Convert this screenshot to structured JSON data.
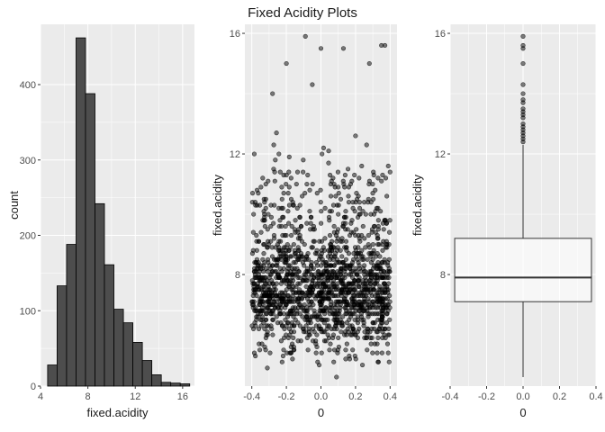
{
  "title": "Fixed Acidity Plots",
  "colors": {
    "panel_bg": "#ebebeb",
    "grid": "#ffffff",
    "bar_fill": "#4d4d4d",
    "bar_stroke": "#000000",
    "point": "#000000",
    "box_fill": "#ffffff"
  },
  "chart_data": [
    {
      "type": "bar",
      "subtype": "histogram",
      "xlabel": "fixed.acidity",
      "ylabel": "count",
      "xlim": [
        4.0,
        17.0
      ],
      "ylim": [
        0,
        480
      ],
      "x_ticks": [
        4,
        8,
        12,
        16
      ],
      "y_ticks": [
        0,
        100,
        200,
        300,
        400
      ],
      "bin_width": 0.8,
      "bins": [
        {
          "x0": 4.6,
          "x1": 5.4,
          "count": 28
        },
        {
          "x0": 5.4,
          "x1": 6.2,
          "count": 133
        },
        {
          "x0": 6.2,
          "x1": 7.0,
          "count": 188
        },
        {
          "x0": 7.0,
          "x1": 7.8,
          "count": 462
        },
        {
          "x0": 7.8,
          "x1": 8.6,
          "count": 388
        },
        {
          "x0": 8.6,
          "x1": 9.4,
          "count": 242
        },
        {
          "x0": 9.4,
          "x1": 10.2,
          "count": 161
        },
        {
          "x0": 10.2,
          "x1": 11.0,
          "count": 102
        },
        {
          "x0": 11.0,
          "x1": 11.8,
          "count": 84
        },
        {
          "x0": 11.8,
          "x1": 12.6,
          "count": 58
        },
        {
          "x0": 12.6,
          "x1": 13.4,
          "count": 34
        },
        {
          "x0": 13.4,
          "x1": 14.2,
          "count": 15
        },
        {
          "x0": 14.2,
          "x1": 15.0,
          "count": 5
        },
        {
          "x0": 15.0,
          "x1": 15.8,
          "count": 4
        },
        {
          "x0": 15.8,
          "x1": 16.6,
          "count": 3
        }
      ]
    },
    {
      "type": "scatter",
      "subtype": "jitter",
      "xlabel": "0",
      "ylabel": "fixed.acidity",
      "xlim": [
        -0.44,
        0.44
      ],
      "ylim": [
        4.3,
        16.3
      ],
      "x_ticks": [
        -0.4,
        -0.2,
        0.0,
        0.2,
        0.4
      ],
      "x_tick_labels": [
        "-0.4",
        "-0.2",
        "0.0",
        "0.2",
        "0.4"
      ],
      "y_ticks": [
        8,
        12,
        16
      ],
      "point_count": 1599,
      "outliers": [
        {
          "x": -0.09,
          "y": 15.9
        },
        {
          "x": 0.0,
          "y": 15.5
        },
        {
          "x": 0.35,
          "y": 15.6
        },
        {
          "x": 0.37,
          "y": 15.6
        },
        {
          "x": 0.13,
          "y": 15.5
        },
        {
          "x": -0.2,
          "y": 15.0
        },
        {
          "x": 0.28,
          "y": 15.0
        },
        {
          "x": -0.05,
          "y": 14.3
        },
        {
          "x": -0.28,
          "y": 14.0
        },
        {
          "x": 0.09,
          "y": 4.6
        },
        {
          "x": -0.31,
          "y": 4.9
        },
        {
          "x": 0.24,
          "y": 5.0
        },
        {
          "x": -0.01,
          "y": 5.0
        },
        {
          "x": 0.33,
          "y": 5.1
        }
      ]
    },
    {
      "type": "box",
      "xlabel": "0",
      "ylabel": "fixed.acidity",
      "xlim": [
        -0.4,
        0.4
      ],
      "ylim": [
        4.3,
        16.3
      ],
      "x_ticks": [
        -0.4,
        -0.2,
        0.0,
        0.2,
        0.4
      ],
      "x_tick_labels": [
        "-0.4",
        "-0.2",
        "0.0",
        "0.2",
        "0.4"
      ],
      "y_ticks": [
        8,
        12,
        16
      ],
      "box_x_range": [
        -0.375,
        0.375
      ],
      "min": 4.6,
      "q1": 7.1,
      "median": 7.9,
      "q3": 9.2,
      "whisker_high": 12.3,
      "outliers": [
        12.4,
        12.5,
        12.6,
        12.7,
        12.8,
        12.9,
        13.0,
        13.2,
        13.3,
        13.4,
        13.5,
        13.7,
        13.8,
        14.0,
        14.3,
        15.0,
        15.5,
        15.6,
        15.9
      ]
    }
  ]
}
